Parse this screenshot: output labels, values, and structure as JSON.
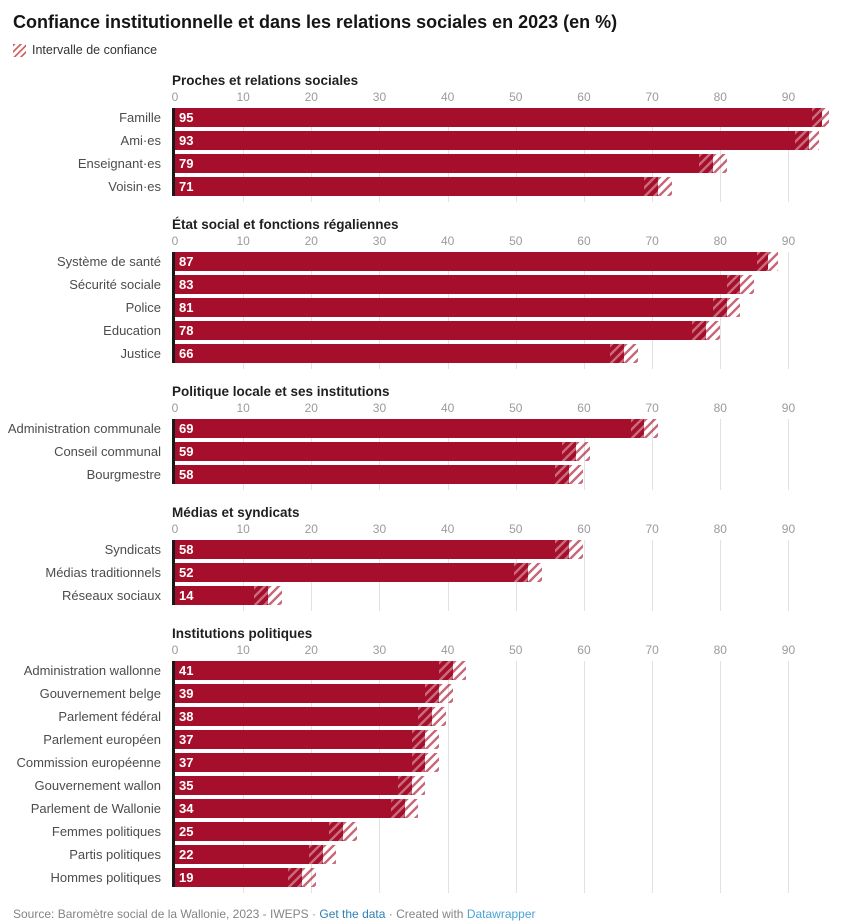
{
  "title": "Confiance institutionnelle et dans les relations sociales en 2023 (en %)",
  "legend": {
    "label": "Intervalle de confiance"
  },
  "colors": {
    "bar": "#a60f2b",
    "axis_line": "#191919",
    "grid": "#e2e2e2",
    "link_get_data": "#2e7fb3",
    "link_datawrapper": "#49a5d6"
  },
  "footer": {
    "source": "Source: Baromètre social de la Wallonie, 2023 - IWEPS",
    "separator": "·",
    "get_data_label": "Get the data",
    "created_with": "Created with",
    "datawrapper_label": "Datawrapper"
  },
  "chart_data": {
    "type": "bar",
    "orientation": "horizontal",
    "unit": "%",
    "title": "Confiance institutionnelle et dans les relations sociales en 2023 (en %)",
    "ci_legend": "Intervalle de confiance",
    "axis": {
      "min": 0,
      "max": 98,
      "ticks": [
        0,
        10,
        20,
        30,
        40,
        50,
        60,
        70,
        80,
        90
      ],
      "grid": true
    },
    "groups": [
      {
        "title": "Proches et relations sociales",
        "bars": [
          {
            "label": "Famille",
            "value": 95,
            "ci": [
              93.5,
              96
            ]
          },
          {
            "label": "Ami·es",
            "value": 93,
            "ci": [
              91,
              94.5
            ]
          },
          {
            "label": "Enseignant·es",
            "value": 79,
            "ci": [
              77,
              81
            ]
          },
          {
            "label": "Voisin·es",
            "value": 71,
            "ci": [
              69,
              73
            ]
          }
        ]
      },
      {
        "title": "État social et fonctions régaliennes",
        "bars": [
          {
            "label": "Système de santé",
            "value": 87,
            "ci": [
              85.5,
              88.5
            ]
          },
          {
            "label": "Sécurité sociale",
            "value": 83,
            "ci": [
              81,
              85
            ]
          },
          {
            "label": "Police",
            "value": 81,
            "ci": [
              79,
              83
            ]
          },
          {
            "label": "Education",
            "value": 78,
            "ci": [
              76,
              80
            ]
          },
          {
            "label": "Justice",
            "value": 66,
            "ci": [
              64,
              68
            ]
          }
        ]
      },
      {
        "title": "Politique locale et ses institutions",
        "bars": [
          {
            "label": "Administration communale",
            "value": 69,
            "ci": [
              67,
              71
            ]
          },
          {
            "label": "Conseil communal",
            "value": 59,
            "ci": [
              57,
              61
            ]
          },
          {
            "label": "Bourgmestre",
            "value": 58,
            "ci": [
              56,
              60
            ]
          }
        ]
      },
      {
        "title": "Médias et syndicats",
        "bars": [
          {
            "label": "Syndicats",
            "value": 58,
            "ci": [
              56,
              60
            ]
          },
          {
            "label": "Médias traditionnels",
            "value": 52,
            "ci": [
              50,
              54
            ]
          },
          {
            "label": "Réseaux sociaux",
            "value": 14,
            "ci": [
              12,
              16
            ]
          }
        ]
      },
      {
        "title": "Institutions politiques",
        "bars": [
          {
            "label": "Administration wallonne",
            "value": 41,
            "ci": [
              39,
              43
            ]
          },
          {
            "label": "Gouvernement belge",
            "value": 39,
            "ci": [
              37,
              41
            ]
          },
          {
            "label": "Parlement fédéral",
            "value": 38,
            "ci": [
              36,
              40
            ]
          },
          {
            "label": "Parlement européen",
            "value": 37,
            "ci": [
              35,
              39
            ]
          },
          {
            "label": "Commission européenne",
            "value": 37,
            "ci": [
              35,
              39
            ]
          },
          {
            "label": "Gouvernement wallon",
            "value": 35,
            "ci": [
              33,
              37
            ]
          },
          {
            "label": "Parlement de Wallonie",
            "value": 34,
            "ci": [
              32,
              36
            ]
          },
          {
            "label": "Femmes politiques",
            "value": 25,
            "ci": [
              23,
              27
            ]
          },
          {
            "label": "Partis politiques",
            "value": 22,
            "ci": [
              20,
              24
            ]
          },
          {
            "label": "Hommes politiques",
            "value": 19,
            "ci": [
              17,
              21
            ]
          }
        ]
      }
    ]
  }
}
